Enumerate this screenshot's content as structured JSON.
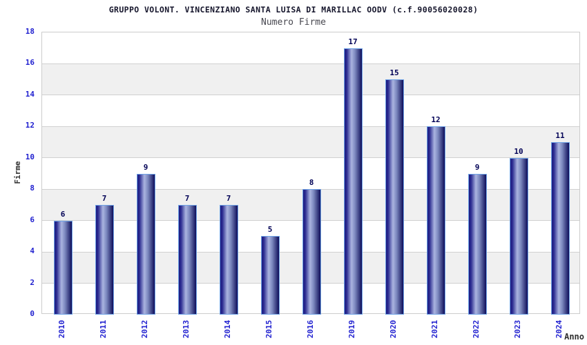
{
  "chart_data": {
    "type": "bar",
    "title": "GRUPPO VOLONT. VINCENZIANO SANTA LUISA DI MARILLAC OODV (c.f.90056020028)",
    "subtitle": "Numero Firme",
    "xlabel": "Anno",
    "ylabel": "Firme",
    "categories": [
      "2010",
      "2011",
      "2012",
      "2013",
      "2014",
      "2015",
      "2016",
      "2019",
      "2020",
      "2021",
      "2022",
      "2023",
      "2024"
    ],
    "values": [
      6,
      7,
      9,
      7,
      7,
      5,
      8,
      17,
      15,
      12,
      9,
      10,
      11
    ],
    "ylim": [
      0,
      18
    ],
    "ytick_step": 2,
    "yticks": [
      0,
      2,
      4,
      6,
      8,
      10,
      12,
      14,
      16,
      18
    ],
    "grid": true,
    "legend_position": "none",
    "colors": {
      "bar_dark": "#14146e",
      "bar_light": "#aab4e0",
      "bar_border": "#6fa3e6",
      "tick_label": "#2222d0",
      "value_label": "#000055",
      "band_alt": "#f0f0f0",
      "grid_line": "#d0d0d0",
      "title": "#16162c",
      "subtitle": "#47474f",
      "axis_label": "#2f2f2f",
      "plot_border": "#cccccc",
      "background": "#ffffff"
    }
  }
}
